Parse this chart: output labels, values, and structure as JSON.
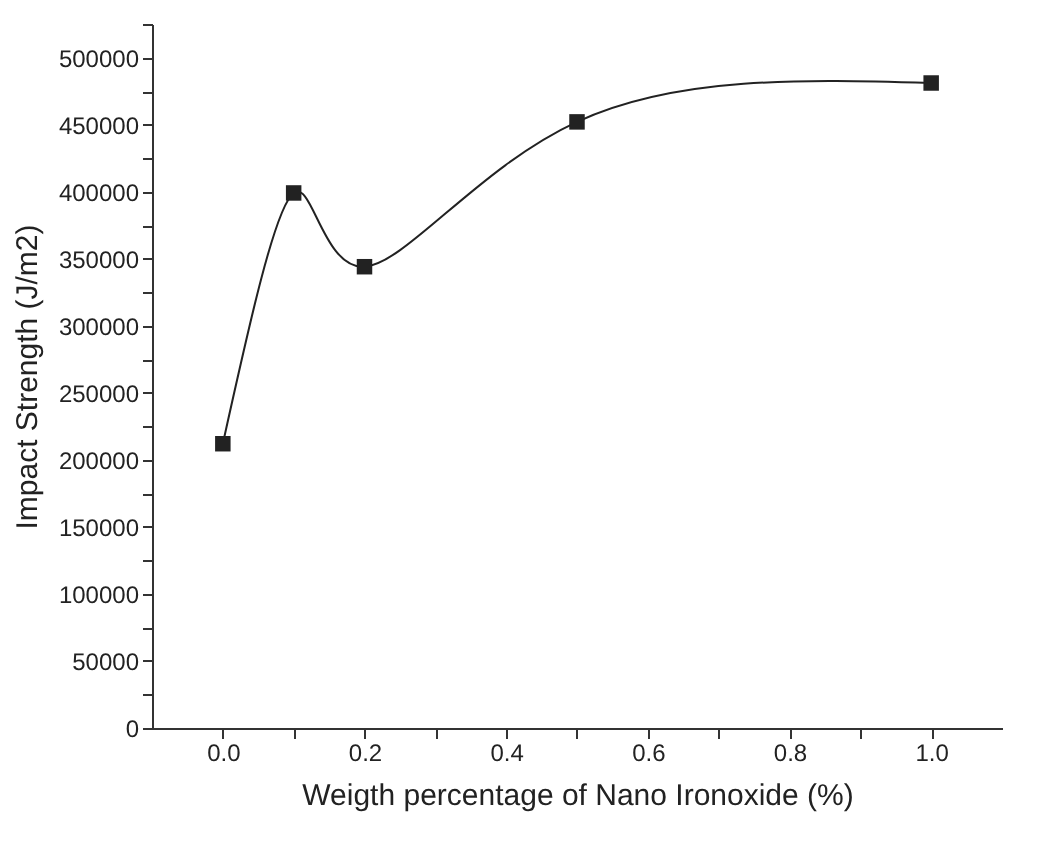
{
  "chart_data": {
    "type": "line",
    "xlabel": "Weigth percentage of Nano Ironoxide (%)",
    "ylabel": "Impact Strength (J/m2)",
    "x": [
      0,
      0.1,
      0.2,
      0.5,
      1.0
    ],
    "series": [
      {
        "color": "#222222",
        "values": [
          212000,
          399000,
          344000,
          452000,
          481000
        ]
      }
    ],
    "marker": "square",
    "line_style": "solid",
    "grid": false,
    "legend": false,
    "xlim": [
      -0.1,
      1.1
    ],
    "xticks": [
      {
        "value": 0,
        "label": "0.0"
      },
      {
        "value": 0.1,
        "label": null
      },
      {
        "value": 0.2,
        "label": "0.2"
      },
      {
        "value": 0.3,
        "label": null
      },
      {
        "value": 0.4,
        "label": "0.4"
      },
      {
        "value": 0.5,
        "label": null
      },
      {
        "value": 0.6,
        "label": "0.6"
      },
      {
        "value": 0.7,
        "label": null
      },
      {
        "value": 0.8,
        "label": "0.8"
      },
      {
        "value": 0.9,
        "label": null
      },
      {
        "value": 1.0,
        "label": "1.0"
      }
    ],
    "ylim": [
      0,
      525000
    ],
    "yticks": [
      0,
      {
        "value": 25000,
        "label": null
      },
      50000,
      {
        "value": 75000,
        "label": null
      },
      100000,
      {
        "value": 125000,
        "label": null
      },
      150000,
      {
        "value": 175000,
        "label": null
      },
      200000,
      {
        "value": 225000,
        "label": null
      },
      250000,
      {
        "value": 275000,
        "label": null
      },
      300000,
      {
        "value": 325000,
        "label": null
      },
      350000,
      {
        "value": 375000,
        "label": null
      },
      400000,
      {
        "value": 425000,
        "label": null
      },
      450000,
      {
        "value": 475000,
        "label": null
      },
      500000,
      {
        "value": 525000,
        "label": null
      }
    ]
  }
}
